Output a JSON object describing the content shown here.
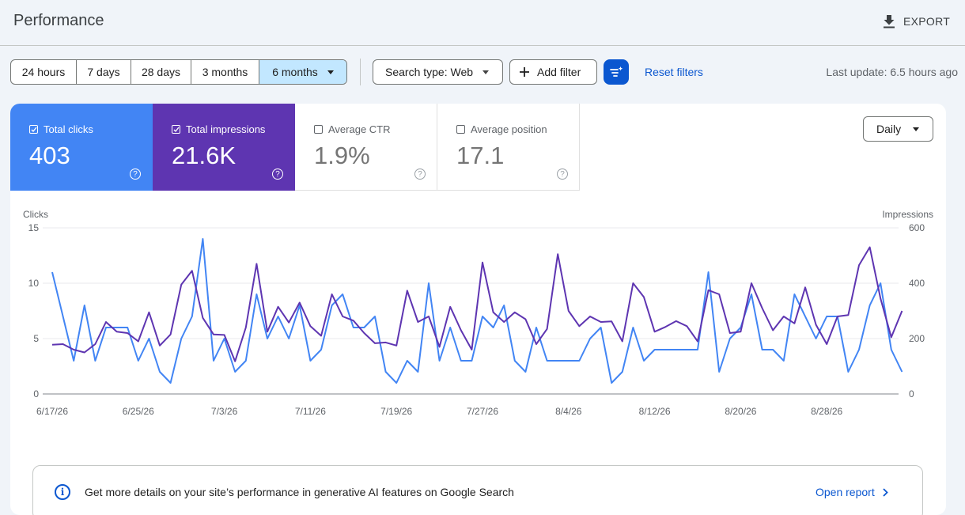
{
  "header": {
    "title": "Performance",
    "export_label": "EXPORT"
  },
  "toolbar": {
    "date_ranges": [
      "24 hours",
      "7 days",
      "28 days",
      "3 months",
      "6 months"
    ],
    "selected_range": "6 months",
    "search_type": "Search type: Web",
    "add_filter": "Add filter",
    "reset_filters": "Reset filters",
    "last_update": "Last update: 6.5 hours ago"
  },
  "metrics": [
    {
      "label": "Total clicks",
      "value": "403",
      "checked": true,
      "color": "#4285f4"
    },
    {
      "label": "Total impressions",
      "value": "21.6K",
      "checked": true,
      "color": "#5e35b1"
    },
    {
      "label": "Average CTR",
      "value": "1.9%",
      "checked": false
    },
    {
      "label": "Average position",
      "value": "17.1",
      "checked": false
    }
  ],
  "granularity": "Daily",
  "chart_data": {
    "type": "line",
    "left_axis": {
      "label": "Clicks",
      "ticks": [
        0,
        5,
        10,
        15
      ],
      "range": [
        0,
        15
      ]
    },
    "right_axis": {
      "label": "Impressions",
      "ticks": [
        0,
        200,
        400,
        600
      ],
      "range": [
        0,
        600
      ]
    },
    "x_ticks": [
      "6/17/26",
      "6/25/26",
      "7/3/26",
      "7/11/26",
      "7/19/26",
      "7/27/26",
      "8/4/26",
      "8/12/26",
      "8/20/26",
      "8/28/26"
    ],
    "x_start": "2026-06-17",
    "grid": true,
    "series": [
      {
        "name": "Clicks",
        "axis": "left",
        "color": "#4285f4",
        "values": [
          11,
          7,
          3,
          8,
          3,
          6,
          6,
          6,
          3,
          5,
          2,
          1,
          5,
          7,
          14,
          3,
          5,
          2,
          3,
          9,
          5,
          7,
          5,
          8,
          3,
          4,
          8,
          9,
          6,
          6,
          7,
          2,
          1,
          3,
          2,
          10,
          3,
          6,
          3,
          3,
          7,
          6,
          8,
          3,
          2,
          6,
          3,
          3,
          3,
          3,
          5,
          6,
          1,
          2,
          6,
          3,
          4,
          4,
          4,
          4,
          4,
          11,
          2,
          5,
          6,
          9,
          4,
          4,
          3,
          9,
          7,
          5,
          7,
          7,
          2,
          4,
          8,
          10,
          4,
          2
        ]
      },
      {
        "name": "Impressions",
        "axis": "right",
        "color": "#5e35b1",
        "values": [
          178,
          180,
          160,
          150,
          180,
          260,
          225,
          220,
          190,
          295,
          175,
          215,
          395,
          445,
          275,
          215,
          213,
          118,
          240,
          470,
          225,
          315,
          258,
          330,
          245,
          210,
          360,
          280,
          265,
          220,
          183,
          186,
          175,
          373,
          260,
          280,
          170,
          315,
          230,
          160,
          475,
          295,
          260,
          295,
          270,
          180,
          235,
          505,
          300,
          245,
          280,
          260,
          262,
          190,
          400,
          350,
          225,
          242,
          263,
          245,
          190,
          375,
          360,
          220,
          225,
          400,
          310,
          230,
          280,
          255,
          385,
          250,
          180,
          280,
          285,
          465,
          530,
          345,
          205,
          300
        ]
      }
    ]
  },
  "notice": {
    "text": "Get more details on your site’s performance in generative AI features on Google Search",
    "link": "Open report"
  }
}
